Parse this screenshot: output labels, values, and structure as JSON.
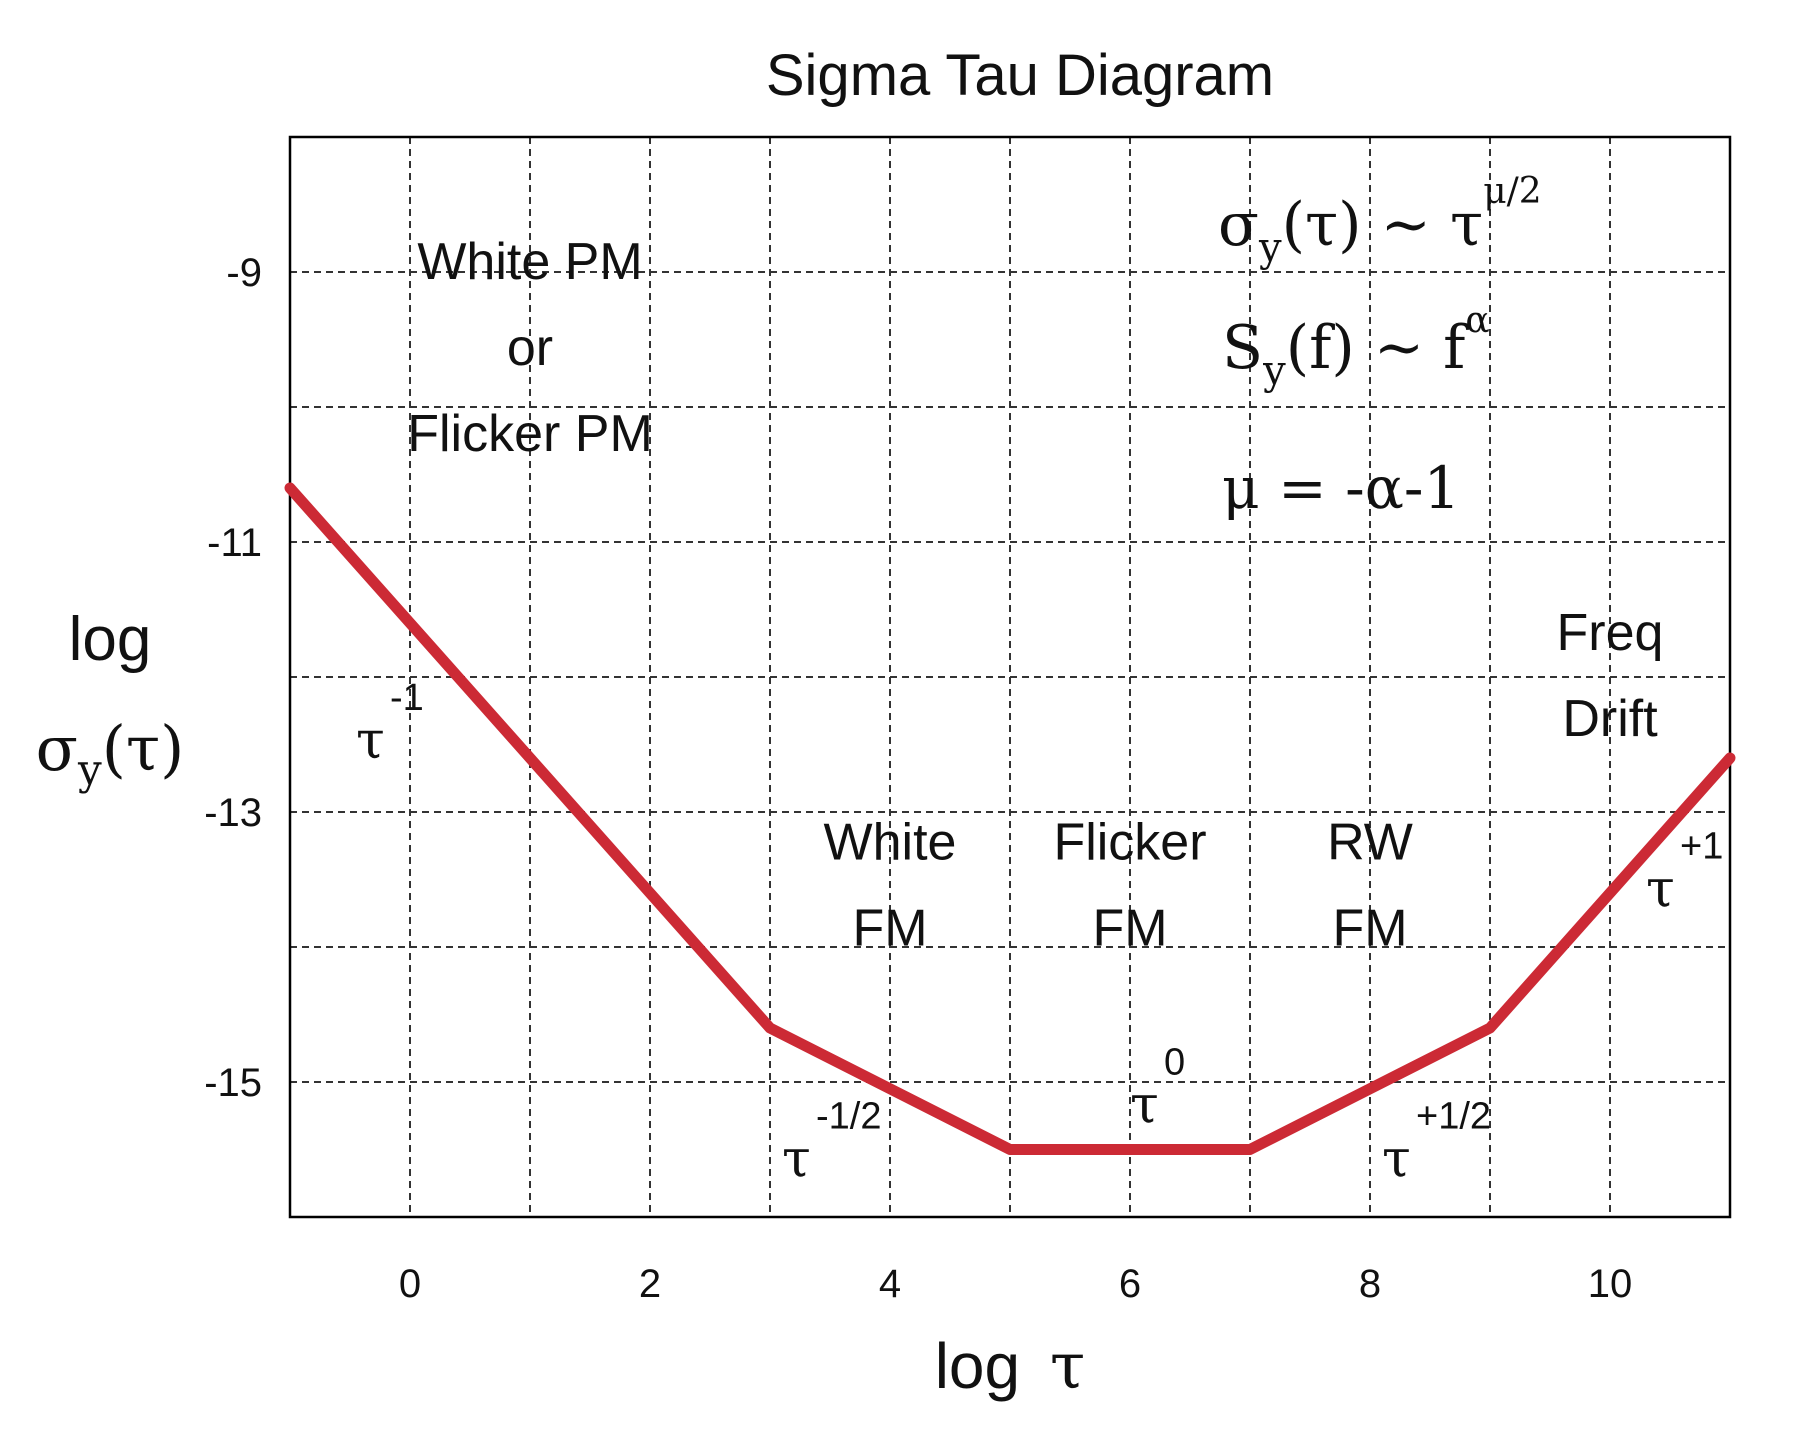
{
  "chart_data": {
    "type": "line",
    "title": "Sigma Tau Diagram",
    "xlabel_prefix": "log",
    "xlabel_symbol": "τ",
    "ylabel_line1": "log",
    "ylabel_sigma": "σ",
    "ylabel_sub": "y",
    "ylabel_arg": "(τ)",
    "xlim": [
      -1,
      11
    ],
    "ylim": [
      -16,
      -8
    ],
    "x_ticks": [
      {
        "value": 0,
        "label": "0"
      },
      {
        "value": 2,
        "label": "2"
      },
      {
        "value": 4,
        "label": "4"
      },
      {
        "value": 6,
        "label": "6"
      },
      {
        "value": 8,
        "label": "8"
      },
      {
        "value": 10,
        "label": "10"
      }
    ],
    "y_ticks": [
      {
        "value": -9,
        "label": "-9"
      },
      {
        "value": -11,
        "label": "-11"
      },
      {
        "value": -13,
        "label": "-13"
      },
      {
        "value": -15,
        "label": "-15"
      }
    ],
    "grid": true,
    "series": [
      {
        "color": "#cc2a35",
        "points": [
          [
            -1,
            -10.6
          ],
          [
            3,
            -14.6
          ],
          [
            5,
            -15.5
          ],
          [
            7,
            -15.5
          ],
          [
            9,
            -14.6
          ],
          [
            11,
            -12.6
          ]
        ]
      }
    ],
    "region_labels": [
      {
        "lines": [
          "White PM",
          "or",
          "Flicker PM"
        ],
        "x": 1.0,
        "y": -9.05
      },
      {
        "lines": [
          "White",
          "FM"
        ],
        "x": 4.0,
        "y": -13.35
      },
      {
        "lines": [
          "Flicker",
          "FM"
        ],
        "x": 6.0,
        "y": -13.35
      },
      {
        "lines": [
          "RW",
          "FM"
        ],
        "x": 8.0,
        "y": -13.35
      },
      {
        "lines": [
          "Freq",
          "Drift"
        ],
        "x": 10.0,
        "y": -11.8
      }
    ],
    "slope_labels": [
      {
        "base": "τ",
        "exp": "-1",
        "x": -0.45,
        "y": -12.6
      },
      {
        "base": "τ",
        "exp": "-1/2",
        "x": 3.1,
        "y": -15.7
      },
      {
        "base": "τ",
        "exp": "0",
        "x": 6.0,
        "y": -15.3
      },
      {
        "base": "τ",
        "exp": "+1/2",
        "x": 8.1,
        "y": -15.7
      },
      {
        "base": "τ",
        "exp": "+1",
        "x": 10.3,
        "y": -13.7
      }
    ],
    "formulas": {
      "line1": {
        "a": "σ",
        "sub": "y",
        "b": "(τ) ~ τ",
        "sup": "μ/2"
      },
      "line2": {
        "a": "S",
        "sub": "y",
        "b": "(f) ~ f",
        "sup": "α"
      },
      "line3": {
        "text": "μ = -α-1"
      }
    }
  }
}
